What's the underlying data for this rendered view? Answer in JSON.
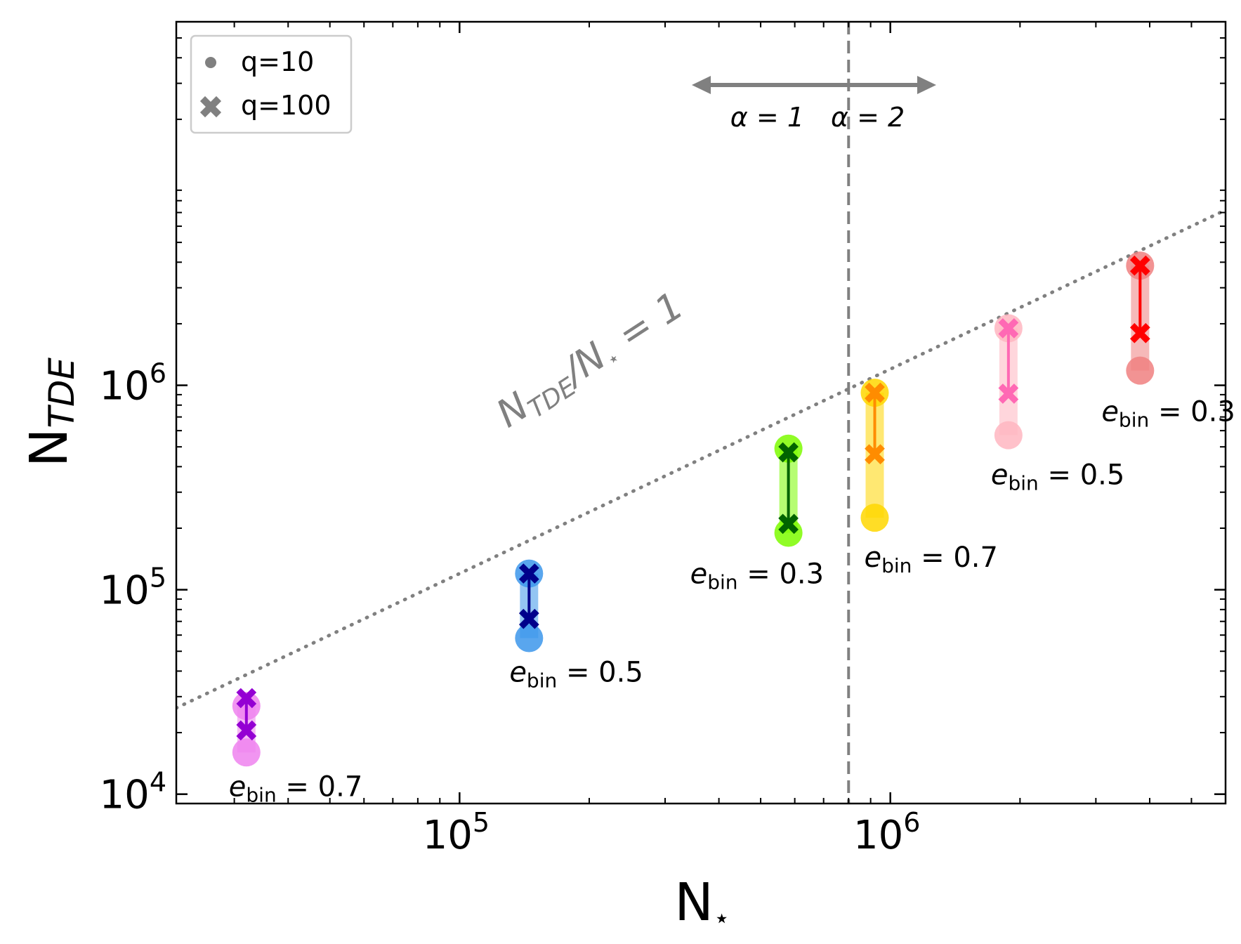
{
  "chart_data": {
    "type": "scatter",
    "xscale": "log",
    "yscale": "log",
    "xlim": [
      22000,
      6000000
    ],
    "ylim": [
      9000,
      60000000
    ],
    "xlabel": "N",
    "xlabel_sub": "⋆",
    "ylabel": "N",
    "ylabel_sub": "TDE",
    "x_ticks": [
      {
        "value": 100000,
        "base": "10",
        "exp": "5"
      },
      {
        "value": 1000000,
        "base": "10",
        "exp": "6"
      }
    ],
    "y_ticks": [
      {
        "value": 10000,
        "base": "10",
        "exp": "4"
      },
      {
        "value": 100000,
        "base": "10",
        "exp": "5"
      },
      {
        "value": 1000000,
        "base": "10",
        "exp": "6"
      }
    ],
    "legend": {
      "position": "top-left",
      "entries": [
        {
          "label": "q=10",
          "marker": "circle"
        },
        {
          "label": "q=100",
          "marker": "x"
        }
      ]
    },
    "reference_line": {
      "label": "NTDE/N⋆ = 1",
      "label_main": "N",
      "label_sub": "TDE",
      "label_rest": "/N",
      "label_star": "⋆",
      "label_eq": " = 1",
      "style": "dotted",
      "slope_ratio": 1.2
    },
    "divider": {
      "x": 800000,
      "style": "dashed",
      "left_label": "α = 1",
      "right_label": "α = 2"
    },
    "groups": [
      {
        "x": 32000,
        "color": "#9400D3",
        "light": "#EE82EE",
        "q10": [
          16000,
          27000
        ],
        "q100": [
          20500,
          29500
        ],
        "label_e": "e",
        "label_sub": "bin",
        "label_val": " = 0.7",
        "label_pos": "below"
      },
      {
        "x": 145000,
        "color": "#00008B",
        "light": "#3C96EB",
        "q10": [
          58000,
          120000
        ],
        "q100": [
          72000,
          120000
        ],
        "label_e": "e",
        "label_sub": "bin",
        "label_val": " = 0.5",
        "label_pos": "below"
      },
      {
        "x": 580000,
        "color": "#006400",
        "light": "#7CFC00",
        "q10": [
          190000,
          490000
        ],
        "q100": [
          210000,
          470000
        ],
        "label_e": "e",
        "label_sub": "bin",
        "label_val": " = 0.3",
        "label_pos": "below-left"
      },
      {
        "x": 920000,
        "color": "#FF8C00",
        "light": "#FFD700",
        "q10": [
          225000,
          920000
        ],
        "q100": [
          460000,
          920000
        ],
        "label_e": "e",
        "label_sub": "bin",
        "label_val": " = 0.7",
        "label_pos": "below"
      },
      {
        "x": 1880000,
        "color": "#FF69B4",
        "light": "#FFB6C1",
        "q10": [
          570000,
          1900000
        ],
        "q100": [
          910000,
          1900000
        ],
        "label_e": "e",
        "label_sub": "bin",
        "label_val": " = 0.5",
        "label_pos": "below"
      },
      {
        "x": 3800000,
        "color": "#FF0000",
        "light": "#F08080",
        "q10": [
          1180000,
          3850000
        ],
        "q100": [
          1800000,
          3850000
        ],
        "label_e": "e",
        "label_sub": "bin",
        "label_val": " = 0.3",
        "label_pos": "below-right"
      }
    ]
  }
}
